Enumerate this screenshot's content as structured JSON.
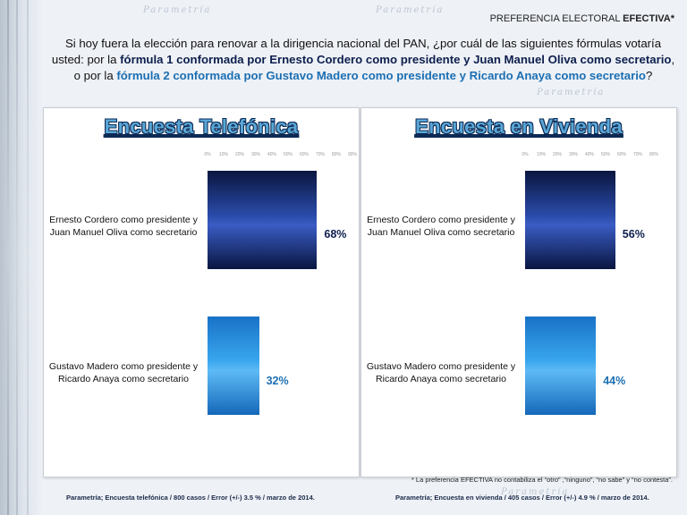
{
  "header": {
    "label_prefix": "PREFERENCIA ELECTORAL ",
    "label_bold": "EFECTIVA*"
  },
  "question": {
    "part1": "Si hoy fuera la elección para renovar a la dirigencia nacional del PAN, ¿por cuál de las siguientes fórmulas votaría usted: por la ",
    "part2": "fórmula 1 conformada por Ernesto Cordero como presidente y Juan Manuel Oliva como secretario",
    "part3": ", o por la ",
    "part4": "fórmula 2 conformada por Gustavo Madero como presidente y Ricardo Anaya como secretario",
    "part5": "?"
  },
  "colors": {
    "formula1": "#0d1f4d",
    "formula2": "#1c6fb3"
  },
  "watermark": "Parametría",
  "chart_data": [
    {
      "type": "bar",
      "orientation": "horizontal",
      "title": "Encuesta Telefónica",
      "categories": [
        "Ernesto Cordero como presidente y Juan Manuel Oliva como secretario",
        "Gustavo Madero como presidente y Ricardo Anaya como secretario"
      ],
      "values": [
        68,
        32
      ],
      "value_labels": [
        "68%",
        "32%"
      ],
      "xlim": [
        0,
        100
      ],
      "ticks": [
        "0%",
        "10%",
        "20%",
        "30%",
        "40%",
        "50%",
        "60%",
        "70%",
        "80%",
        "90%"
      ],
      "source": "Parametría; Encuesta telefónica / 800 casos / Error (+/-) 3.5 % / marzo de 2014."
    },
    {
      "type": "bar",
      "orientation": "horizontal",
      "title": "Encuesta en Vivienda",
      "categories": [
        "Ernesto Cordero como presidente y Juan Manuel Oliva como secretario",
        "Gustavo Madero como presidente y Ricardo Anaya como secretario"
      ],
      "values": [
        56,
        44
      ],
      "value_labels": [
        "56%",
        "44%"
      ],
      "xlim": [
        0,
        100
      ],
      "ticks": [
        "0%",
        "10%",
        "20%",
        "30%",
        "40%",
        "50%",
        "60%",
        "70%",
        "80%"
      ],
      "source": "Parametría; Encuesta en vivienda / 405 casos / Error (+/-) 4.9 % / marzo de 2014."
    }
  ],
  "footnote": "* La preferencia EFECTIVA no contabiliza el  “otro” ,“ninguno”, “no sabe” y “no contesta”."
}
